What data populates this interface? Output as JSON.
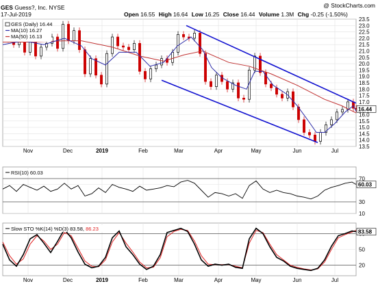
{
  "header": {
    "symbol": "GES",
    "company": "Guess?, Inc.",
    "exchange": "NYSE",
    "date": "17-Jul-2019",
    "open_label": "Open",
    "open": "16.55",
    "high_label": "High",
    "high": "16.64",
    "low_label": "Low",
    "low": "16.25",
    "close_label": "Close",
    "close": "16.44",
    "volume_label": "Volume",
    "volume": "1.3M",
    "chg_label": "Chg",
    "chg": "-0.25 (-1.50%)",
    "chg_color": "#cc0000",
    "watermark": "@ StockCharts.com"
  },
  "legend": {
    "price": "GES (Daily) 16.44",
    "ma10": "MA(10) 16.27",
    "ma50": "MA(50) 16.13",
    "rsi": "RSI(10) 60.03",
    "sto_prefix": "Slow STO %K(14) %D(3) 83.58,",
    "sto_d": "86.23"
  },
  "colors": {
    "up": "#000000",
    "down": "#cc0000",
    "ma10": "#2a2aa8",
    "ma50": "#c03030",
    "channel": "#1010d0",
    "rsi": "#000000",
    "rsi_fill": "#b07060",
    "sto_k": "#000000",
    "sto_d": "#e02020"
  },
  "chart_data": [
    {
      "type": "candlestick",
      "title": "GES Guess?, Inc. NYSE",
      "x_tick_labels": [
        "Nov",
        "Dec",
        "2019",
        "Feb",
        "Mar",
        "Apr",
        "May",
        "Jun",
        "Jul"
      ],
      "ylim": [
        13.5,
        23.5
      ],
      "y_ticks": [
        13.5,
        14.0,
        14.5,
        15.0,
        15.5,
        16.0,
        16.5,
        17.0,
        17.5,
        18.0,
        18.5,
        19.0,
        19.5,
        20.0,
        20.5,
        21.0,
        21.5,
        22.0,
        22.5,
        23.0,
        23.5
      ],
      "y_tick_labels": [
        "13.5",
        "14.0",
        "14.5",
        "15.0",
        "15.5",
        "16.0",
        "16.5",
        "17.0",
        "17.5",
        "18.0",
        "18.5",
        "19.0",
        "19.5",
        "20.0",
        "20.5",
        "21.0",
        "21.5",
        "22.0",
        "22.5",
        "23.0",
        "23.5"
      ],
      "last_close_label": "16.44",
      "last_close": 16.44,
      "series": [
        {
          "name": "GES (Daily)",
          "close_path": [
            [
              0,
              21.9
            ],
            [
              8,
              22.4
            ],
            [
              16,
              21.5
            ],
            [
              24,
              22.2
            ],
            [
              32,
              20.9
            ],
            [
              40,
              21.7
            ],
            [
              48,
              20.6
            ],
            [
              56,
              21.3
            ],
            [
              64,
              21.6
            ],
            [
              72,
              22.1
            ],
            [
              80,
              21.2
            ],
            [
              88,
              23.1
            ],
            [
              96,
              21.8
            ],
            [
              104,
              22.6
            ],
            [
              112,
              21.1
            ],
            [
              120,
              19.2
            ],
            [
              128,
              20.4
            ],
            [
              136,
              19.1
            ],
            [
              144,
              18.4
            ],
            [
              152,
              20.8
            ],
            [
              160,
              22.1
            ],
            [
              168,
              21.4
            ],
            [
              176,
              21.3
            ],
            [
              184,
              21.1
            ],
            [
              192,
              21.6
            ],
            [
              200,
              19.4
            ],
            [
              208,
              18.8
            ],
            [
              216,
              19.6
            ],
            [
              224,
              19.9
            ],
            [
              232,
              20.4
            ],
            [
              240,
              20.1
            ],
            [
              248,
              20.9
            ],
            [
              256,
              22.3
            ],
            [
              264,
              22.1
            ],
            [
              272,
              22.0
            ],
            [
              280,
              22.4
            ],
            [
              288,
              20.8
            ],
            [
              296,
              18.6
            ],
            [
              304,
              18.2
            ],
            [
              312,
              19.1
            ],
            [
              320,
              18.6
            ],
            [
              328,
              18.0
            ],
            [
              336,
              18.5
            ],
            [
              344,
              17.3
            ],
            [
              352,
              17.2
            ],
            [
              360,
              19.5
            ],
            [
              368,
              20.6
            ],
            [
              376,
              19.3
            ],
            [
              384,
              18.4
            ],
            [
              392,
              18.1
            ],
            [
              400,
              17.6
            ],
            [
              408,
              17.3
            ],
            [
              416,
              17.8
            ],
            [
              424,
              16.6
            ],
            [
              432,
              15.6
            ],
            [
              440,
              14.6
            ],
            [
              448,
              14.4
            ],
            [
              456,
              13.9
            ],
            [
              464,
              14.6
            ],
            [
              472,
              15.2
            ],
            [
              480,
              15.6
            ],
            [
              488,
              16.2
            ],
            [
              496,
              16.4
            ],
            [
              504,
              17.0
            ],
            [
              512,
              16.5
            ],
            [
              516,
              16.44
            ]
          ]
        },
        {
          "name": "MA(10)",
          "path": [
            [
              0,
              21.5
            ],
            [
              30,
              21.8
            ],
            [
              60,
              21.5
            ],
            [
              90,
              22.0
            ],
            [
              115,
              21.4
            ],
            [
              130,
              20.4
            ],
            [
              150,
              19.9
            ],
            [
              170,
              20.9
            ],
            [
              195,
              20.9
            ],
            [
              215,
              19.8
            ],
            [
              235,
              20.1
            ],
            [
              255,
              21.4
            ],
            [
              275,
              22.1
            ],
            [
              292,
              21.1
            ],
            [
              305,
              19.7
            ],
            [
              320,
              18.9
            ],
            [
              340,
              18.3
            ],
            [
              356,
              18.0
            ],
            [
              368,
              19.4
            ],
            [
              380,
              19.4
            ],
            [
              395,
              18.3
            ],
            [
              415,
              17.6
            ],
            [
              430,
              16.7
            ],
            [
              445,
              15.6
            ],
            [
              458,
              14.6
            ],
            [
              470,
              14.6
            ],
            [
              485,
              15.3
            ],
            [
              500,
              16.2
            ],
            [
              512,
              16.7
            ],
            [
              516,
              16.27
            ]
          ]
        },
        {
          "name": "MA(50)",
          "path": [
            [
              0,
              21.7
            ],
            [
              40,
              21.7
            ],
            [
              90,
              21.8
            ],
            [
              115,
              21.8
            ],
            [
              160,
              21.3
            ],
            [
              200,
              20.6
            ],
            [
              235,
              20.2
            ],
            [
              265,
              20.7
            ],
            [
              292,
              21.0
            ],
            [
              330,
              20.1
            ],
            [
              360,
              19.8
            ],
            [
              392,
              19.2
            ],
            [
              430,
              18.3
            ],
            [
              470,
              17.2
            ],
            [
              495,
              16.7
            ],
            [
              516,
              16.13
            ]
          ]
        },
        {
          "name": "Upper channel",
          "path": [
            [
              268,
              23.0
            ],
            [
              516,
              16.9
            ]
          ]
        },
        {
          "name": "Lower channel",
          "path": [
            [
              232,
              18.7
            ],
            [
              460,
              13.8
            ]
          ]
        }
      ]
    },
    {
      "type": "line",
      "title": "RSI(10) 60.03",
      "ylim": [
        10,
        90
      ],
      "y_ticks": [
        10,
        30,
        60,
        70
      ],
      "y_tick_labels": [
        "10",
        "30",
        "60",
        "70"
      ],
      "reference_lines": [
        30,
        70
      ],
      "last_value_label": "60.03",
      "last_value": 60.03,
      "series": [
        {
          "name": "RSI(10)",
          "x": [
            0,
            10,
            20,
            30,
            40,
            50,
            60,
            70,
            80,
            90,
            100,
            110,
            120,
            130,
            140,
            150,
            160,
            170,
            180,
            190,
            200,
            210,
            220,
            230,
            240,
            250,
            260,
            270,
            280,
            290,
            300,
            310,
            320,
            330,
            340,
            350,
            360,
            370,
            380,
            390,
            400,
            410,
            420,
            430,
            440,
            450,
            460,
            470,
            480,
            490,
            500,
            510,
            516
          ],
          "y": [
            52,
            58,
            48,
            60,
            55,
            50,
            57,
            48,
            52,
            62,
            52,
            58,
            40,
            44,
            54,
            46,
            60,
            55,
            52,
            48,
            57,
            50,
            52,
            54,
            58,
            56,
            64,
            67,
            62,
            50,
            38,
            46,
            44,
            40,
            44,
            36,
            58,
            66,
            52,
            46,
            50,
            46,
            44,
            40,
            38,
            35,
            40,
            50,
            55,
            58,
            62,
            64,
            60.03
          ]
        }
      ]
    },
    {
      "type": "line",
      "title": "Slow STO %K(14) %D(3) 83.58, 86.23",
      "ylim": [
        0,
        100
      ],
      "y_ticks": [
        20,
        50,
        80
      ],
      "y_tick_labels": [
        "20",
        "50",
        "80"
      ],
      "reference_lines": [
        20,
        80
      ],
      "last_value_label": "83.58",
      "last_value": 83.58,
      "series": [
        {
          "name": "%K(14)",
          "x": [
            0,
            10,
            20,
            30,
            40,
            50,
            60,
            70,
            80,
            90,
            100,
            110,
            120,
            130,
            140,
            150,
            160,
            170,
            180,
            190,
            200,
            210,
            220,
            230,
            240,
            250,
            260,
            270,
            280,
            290,
            300,
            310,
            320,
            330,
            340,
            350,
            360,
            370,
            380,
            390,
            400,
            410,
            420,
            430,
            440,
            450,
            460,
            470,
            480,
            490,
            500,
            510,
            516
          ],
          "y": [
            60,
            30,
            18,
            40,
            70,
            78,
            62,
            44,
            65,
            88,
            72,
            45,
            22,
            15,
            18,
            35,
            72,
            85,
            55,
            40,
            22,
            12,
            18,
            40,
            82,
            86,
            90,
            84,
            60,
            30,
            18,
            22,
            20,
            22,
            16,
            14,
            70,
            90,
            80,
            55,
            35,
            28,
            18,
            14,
            12,
            10,
            14,
            30,
            56,
            76,
            80,
            85,
            83.58
          ]
        },
        {
          "name": "%D(3)",
          "x": [
            0,
            10,
            20,
            30,
            40,
            50,
            60,
            70,
            80,
            90,
            100,
            110,
            120,
            130,
            140,
            150,
            160,
            170,
            180,
            190,
            200,
            210,
            220,
            230,
            240,
            250,
            260,
            270,
            280,
            290,
            300,
            310,
            320,
            330,
            340,
            350,
            360,
            370,
            380,
            390,
            400,
            410,
            420,
            430,
            440,
            450,
            460,
            470,
            480,
            490,
            500,
            510,
            516
          ],
          "y": [
            64,
            38,
            22,
            32,
            60,
            76,
            66,
            50,
            60,
            82,
            76,
            52,
            28,
            18,
            17,
            30,
            64,
            82,
            62,
            45,
            26,
            15,
            16,
            34,
            74,
            84,
            88,
            86,
            66,
            38,
            22,
            21,
            21,
            21,
            18,
            15,
            62,
            86,
            82,
            60,
            40,
            30,
            20,
            16,
            13,
            11,
            13,
            26,
            50,
            72,
            78,
            83,
            86.23
          ]
        }
      ]
    }
  ]
}
